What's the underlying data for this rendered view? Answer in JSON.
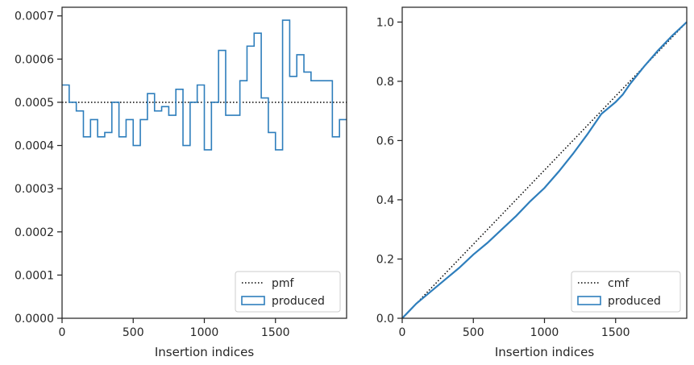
{
  "colors": {
    "series": "#2e7ebc",
    "reference": "#000000",
    "axis": "#262626",
    "legend_border": "#cccccc"
  },
  "chart_data": [
    {
      "type": "line",
      "subtype": "step-histogram",
      "title": "",
      "xlabel": "Insertion indices",
      "ylabel": "",
      "xlim": [
        0,
        2000
      ],
      "ylim": [
        0,
        0.00072
      ],
      "xticks": [
        0,
        500,
        1000,
        1500
      ],
      "xtick_labels": [
        "0",
        "500",
        "1000",
        "1500"
      ],
      "yticks": [
        0,
        0.0001,
        0.0002,
        0.0003,
        0.0004,
        0.0005,
        0.0006,
        0.0007
      ],
      "ytick_labels": [
        "0.0000",
        "0.0001",
        "0.0002",
        "0.0003",
        "0.0004",
        "0.0005",
        "0.0006",
        "0.0007"
      ],
      "grid": false,
      "legend_position": "lower-right",
      "series": [
        {
          "name": "pmf",
          "style": "dotted",
          "x": [
            0,
            2000
          ],
          "y": [
            0.0005,
            0.0005
          ]
        },
        {
          "name": "produced",
          "style": "step",
          "bin_edges": [
            0,
            50,
            100,
            150,
            200,
            250,
            300,
            350,
            400,
            450,
            500,
            550,
            600,
            650,
            700,
            750,
            800,
            850,
            900,
            950,
            1000,
            1050,
            1100,
            1150,
            1200,
            1250,
            1300,
            1350,
            1400,
            1450,
            1500,
            1550,
            1600,
            1650,
            1700,
            1750,
            1800,
            1850,
            1900,
            1950,
            2000
          ],
          "values": [
            0.00054,
            0.0005,
            0.00048,
            0.00042,
            0.00046,
            0.00042,
            0.00043,
            0.0005,
            0.00042,
            0.00046,
            0.0004,
            0.00046,
            0.00052,
            0.00048,
            0.00049,
            0.00047,
            0.00053,
            0.0004,
            0.0005,
            0.00054,
            0.00039,
            0.0005,
            0.00062,
            0.00047,
            0.00047,
            0.00055,
            0.00063,
            0.00066,
            0.00051,
            0.00043,
            0.00039,
            0.00069,
            0.00056,
            0.00061,
            0.00057,
            0.00055,
            0.00055,
            0.00055,
            0.00042,
            0.00046
          ]
        }
      ]
    },
    {
      "type": "line",
      "title": "",
      "xlabel": "Insertion indices",
      "ylabel": "",
      "xlim": [
        0,
        2000
      ],
      "ylim": [
        0,
        1.05
      ],
      "xticks": [
        0,
        500,
        1000,
        1500
      ],
      "xtick_labels": [
        "0",
        "500",
        "1000",
        "1500"
      ],
      "yticks": [
        0,
        0.2,
        0.4,
        0.6,
        0.8,
        1.0
      ],
      "ytick_labels": [
        "0.0",
        "0.2",
        "0.4",
        "0.6",
        "0.8",
        "1.0"
      ],
      "grid": false,
      "legend_position": "lower-right",
      "series": [
        {
          "name": "cmf",
          "style": "dotted",
          "x": [
            0,
            2000
          ],
          "y": [
            0,
            1.0
          ]
        },
        {
          "name": "produced",
          "style": "solid",
          "x": [
            0,
            50,
            100,
            200,
            300,
            400,
            500,
            600,
            700,
            800,
            900,
            1000,
            1100,
            1200,
            1300,
            1350,
            1400,
            1500,
            1550,
            1600,
            1700,
            1800,
            1900,
            2000
          ],
          "y": [
            0,
            0.025,
            0.05,
            0.09,
            0.13,
            0.17,
            0.215,
            0.255,
            0.3,
            0.345,
            0.395,
            0.44,
            0.495,
            0.555,
            0.62,
            0.655,
            0.69,
            0.73,
            0.755,
            0.79,
            0.85,
            0.905,
            0.955,
            1.0
          ]
        }
      ]
    }
  ]
}
